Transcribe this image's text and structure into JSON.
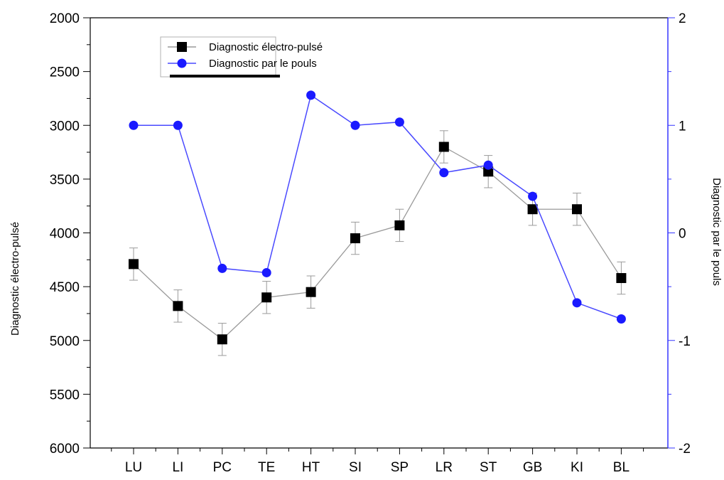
{
  "chart_data": {
    "type": "line",
    "categories": [
      "LU",
      "LI",
      "PC",
      "TE",
      "HT",
      "SI",
      "SP",
      "LR",
      "ST",
      "GB",
      "KI",
      "BL"
    ],
    "series": [
      {
        "name": "Diagnostic électro-pulsé",
        "axis": "left",
        "color": "#000000",
        "line_color": "#9a9a9a",
        "marker": "square",
        "values": [
          4290,
          4680,
          4990,
          4600,
          4550,
          4050,
          3930,
          3200,
          3430,
          3780,
          3780,
          4420
        ],
        "error": [
          150,
          150,
          150,
          150,
          150,
          150,
          150,
          150,
          150,
          150,
          150,
          150
        ]
      },
      {
        "name": "Diagnostic par le pouls",
        "axis": "right",
        "color": "#1a1aff",
        "line_color": "#4a4aff",
        "marker": "circle",
        "values": [
          1.0,
          1.0,
          -0.33,
          -0.37,
          1.28,
          1.0,
          1.03,
          0.56,
          0.63,
          0.34,
          -0.65,
          -0.8
        ]
      }
    ],
    "y_left": {
      "label": "Diagnostic électro-pulsé",
      "range": [
        2000,
        6000
      ],
      "inverted": true,
      "ticks": [
        "2000",
        "2500",
        "3000",
        "3500",
        "4000",
        "4500",
        "5000",
        "5500",
        "6000"
      ],
      "color": "#000000"
    },
    "y_right": {
      "label": "Diagnostic par le pouls",
      "range": [
        -2,
        2
      ],
      "ticks": [
        "2",
        "1",
        "0",
        "-1",
        "-2"
      ],
      "color": "#3535ff"
    },
    "xlabel": "",
    "grid": false,
    "legend": "top-left"
  }
}
